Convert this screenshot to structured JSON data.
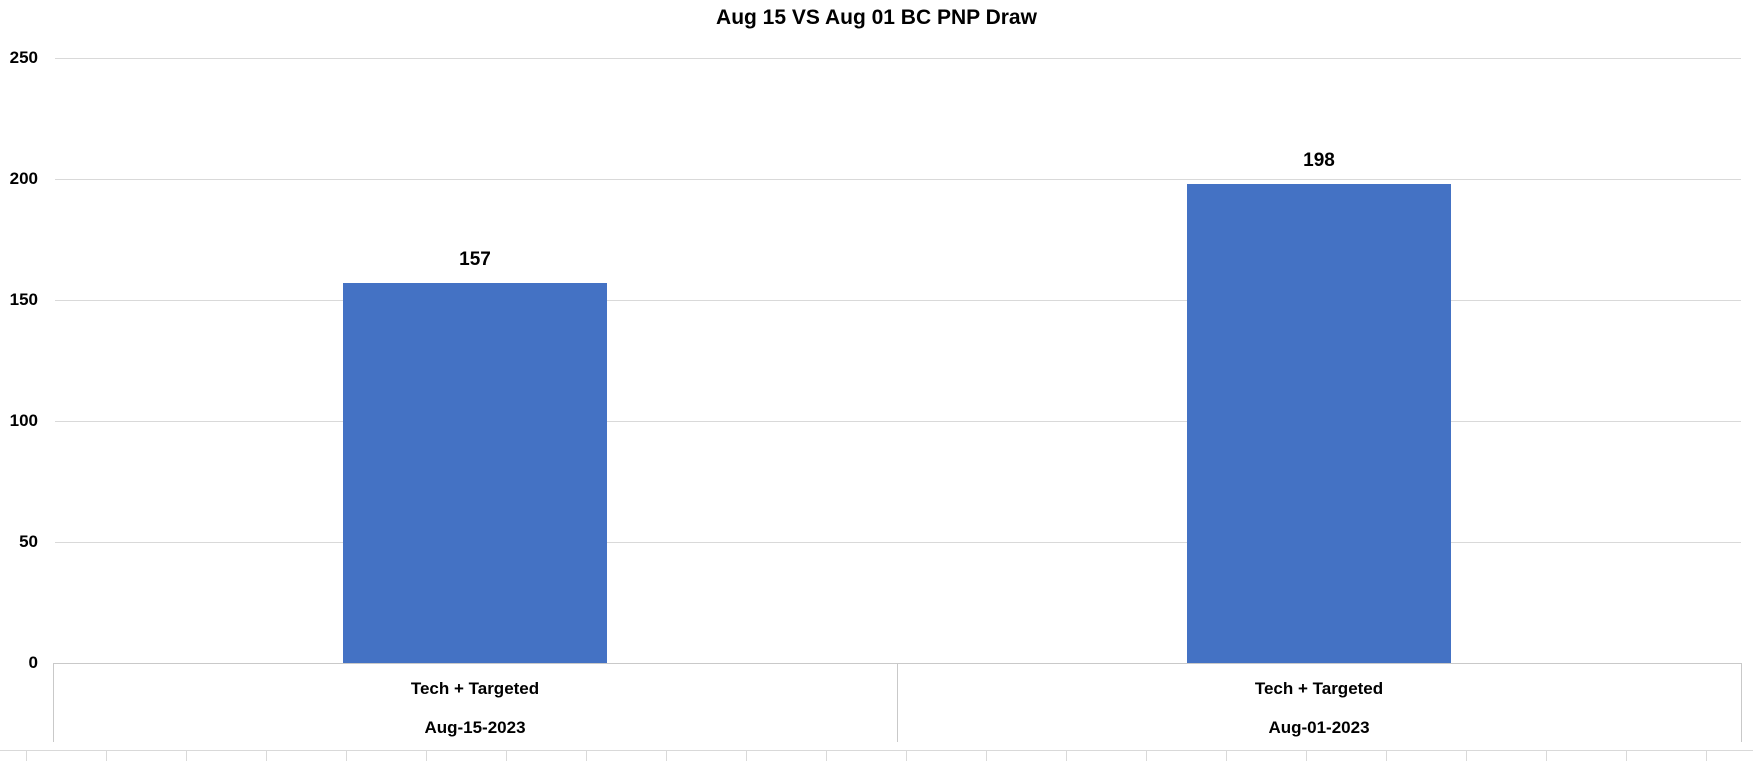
{
  "chart_data": {
    "type": "bar",
    "title": "Aug 15 VS Aug 01 BC PNP Draw",
    "categories": [
      {
        "line1": "Tech + Targeted",
        "line2": "Aug-15-2023"
      },
      {
        "line1": "Tech + Targeted",
        "line2": "Aug-01-2023"
      }
    ],
    "values": [
      157,
      198
    ],
    "data_labels": [
      "157",
      "198"
    ],
    "y_ticks": [
      0,
      50,
      100,
      150,
      200,
      250
    ],
    "ylim": [
      0,
      250
    ],
    "xlabel": "",
    "ylabel": "",
    "legend": "none",
    "grid": true,
    "bar_color": "#4472C4",
    "gridline_color": "#D9D9D9",
    "axis_line_color": "#C9C9C9",
    "text_color": "#000000",
    "bottom_minor_tick_count": 22
  }
}
